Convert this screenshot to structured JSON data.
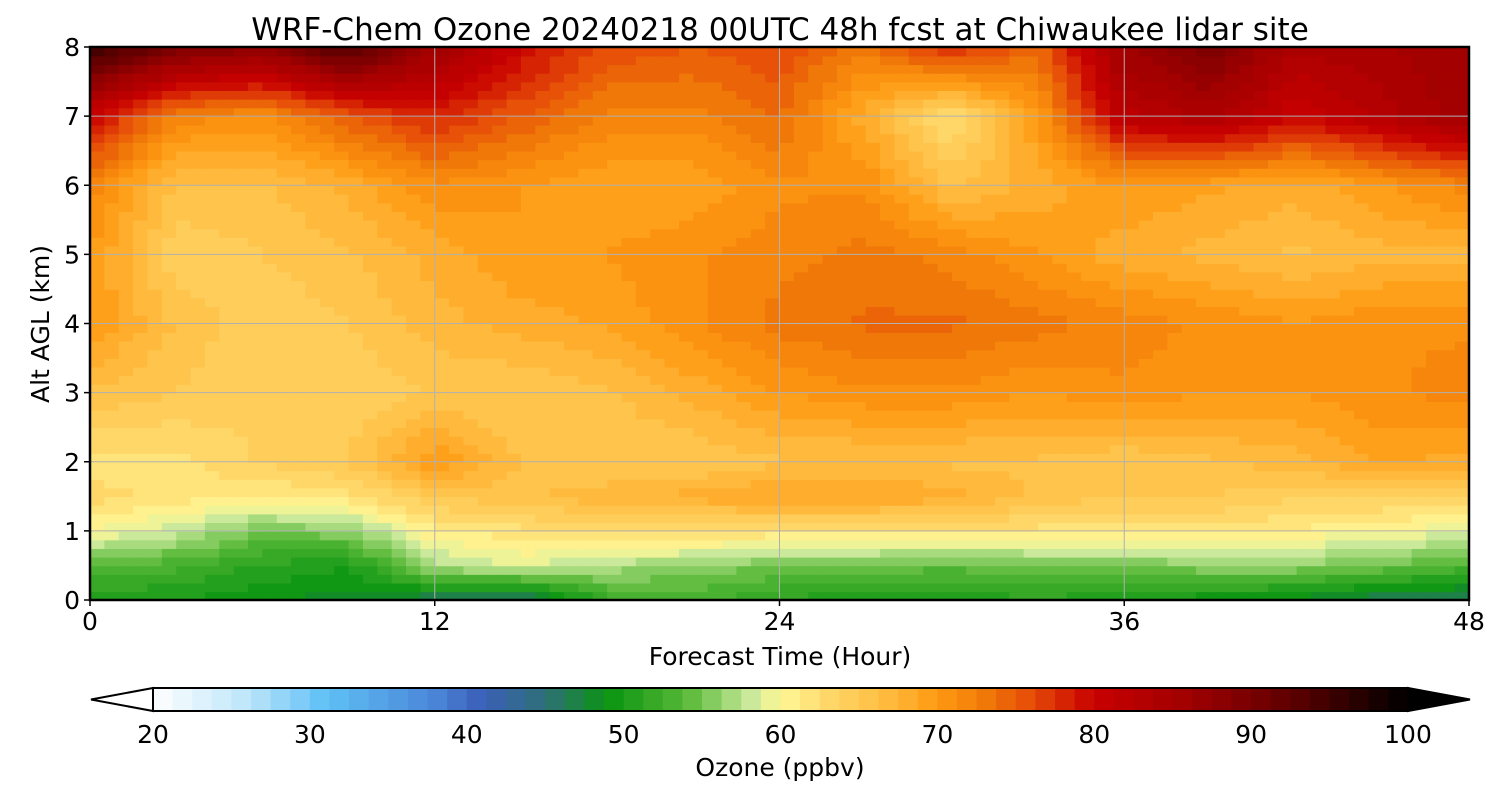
{
  "chart_data": {
    "type": "heatmap",
    "title": "WRF-Chem Ozone  20240218 00UTC 48h fcst at Chiwaukee lidar site",
    "xlabel": "Forecast Time (Hour)",
    "ylabel": "Alt AGL (km)",
    "xlim": [
      0,
      48
    ],
    "ylim": [
      0,
      8
    ],
    "xticks": [
      0,
      12,
      24,
      36,
      48
    ],
    "yticks": [
      0,
      1,
      2,
      3,
      4,
      5,
      6,
      7,
      8
    ],
    "grid": true,
    "x": [
      0,
      3,
      6,
      9,
      12,
      15,
      18,
      21,
      24,
      27,
      30,
      33,
      36,
      39,
      42,
      45,
      48
    ],
    "y": [
      0,
      0.5,
      1,
      1.5,
      2,
      3,
      4,
      5,
      6,
      7,
      8
    ],
    "z": [
      [
        50,
        50,
        49,
        48,
        46,
        45,
        52,
        53,
        51,
        50,
        50,
        51,
        50,
        49,
        48,
        46,
        46
      ],
      [
        54,
        53,
        51,
        50,
        57,
        59,
        57,
        56,
        55,
        55,
        54,
        55,
        55,
        56,
        56,
        55,
        53
      ],
      [
        60,
        58,
        55,
        56,
        61,
        62,
        63,
        63,
        62,
        62,
        62,
        62,
        62,
        62,
        61,
        60,
        59
      ],
      [
        63,
        62,
        61,
        62,
        65,
        66,
        67,
        68,
        69,
        69,
        68,
        66,
        65,
        65,
        64,
        64,
        64
      ],
      [
        62,
        62,
        64,
        65,
        70,
        66,
        65,
        65,
        66,
        66,
        66,
        66,
        65,
        66,
        67,
        69,
        68
      ],
      [
        66,
        65,
        64,
        64,
        65,
        65,
        66,
        68,
        70,
        71,
        71,
        70,
        71,
        70,
        70,
        71,
        72
      ],
      [
        70,
        66,
        64,
        65,
        67,
        68,
        69,
        71,
        73,
        74,
        74,
        73,
        72,
        71,
        70,
        71,
        71
      ],
      [
        70,
        64,
        65,
        66,
        68,
        70,
        70,
        71,
        72,
        73,
        72,
        70,
        68,
        67,
        66,
        67,
        67
      ],
      [
        72,
        66,
        66,
        68,
        71,
        70,
        69,
        69,
        71,
        71,
        66,
        68,
        70,
        69,
        68,
        70,
        72
      ],
      [
        80,
        72,
        71,
        75,
        78,
        75,
        72,
        72,
        74,
        68,
        62,
        70,
        82,
        84,
        80,
        83,
        86
      ],
      [
        96,
        90,
        88,
        94,
        86,
        80,
        76,
        75,
        76,
        73,
        78,
        74,
        86,
        90,
        84,
        85,
        86
      ]
    ],
    "colorbar": {
      "label": "Ozone  (ppbv)",
      "min": 20,
      "max": 100,
      "step": 1.25,
      "ticks": [
        20,
        30,
        40,
        50,
        60,
        70,
        80,
        90,
        100
      ],
      "extend": "both",
      "stops": [
        [
          20,
          "#ffffff"
        ],
        [
          26,
          "#bde6fa"
        ],
        [
          31,
          "#5fc0f5"
        ],
        [
          38,
          "#4a86d8"
        ],
        [
          41,
          "#3a5fb8"
        ],
        [
          45,
          "#2f7078"
        ],
        [
          49,
          "#0a9410"
        ],
        [
          54,
          "#58b838"
        ],
        [
          58,
          "#c7e89a"
        ],
        [
          60,
          "#fff896"
        ],
        [
          63,
          "#ffd86a"
        ],
        [
          67,
          "#ffb93c"
        ],
        [
          70,
          "#ff9a12"
        ],
        [
          73,
          "#f07a08"
        ],
        [
          76,
          "#e64b08"
        ],
        [
          80,
          "#c80000"
        ],
        [
          86,
          "#a00000"
        ],
        [
          92,
          "#640000"
        ],
        [
          100,
          "#000000"
        ]
      ]
    }
  }
}
